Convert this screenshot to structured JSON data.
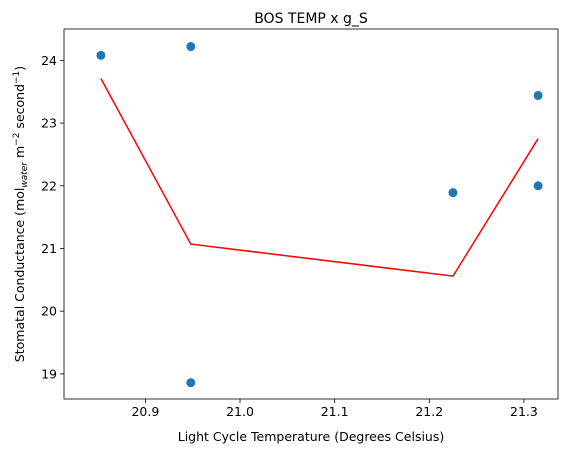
{
  "chart_data": {
    "type": "scatter",
    "title": "BOS TEMP x g_S",
    "xlabel": "Light Cycle Temperature (Degrees Celsius)",
    "ylabel": {
      "prefix": "Stomatal Conductance (mol",
      "sub": "water",
      "mid": " m",
      "sup1": "−2",
      "mid2": " second",
      "sup2": "−1",
      "suffix": ")"
    },
    "xlim": [
      20.814,
      21.336
    ],
    "ylim": [
      18.6,
      24.5
    ],
    "xticks": [
      20.9,
      21.0,
      21.1,
      21.2,
      21.3
    ],
    "xtick_labels": [
      "20.9",
      "21.0",
      "21.1",
      "21.2",
      "21.3"
    ],
    "yticks": [
      19,
      20,
      21,
      22,
      23,
      24
    ],
    "ytick_labels": [
      "19",
      "20",
      "21",
      "22",
      "23",
      "24"
    ],
    "grid": false,
    "series": [
      {
        "kind": "scatter",
        "color": "#1f77b4",
        "points": [
          {
            "x": 20.853,
            "y": 24.08
          },
          {
            "x": 20.948,
            "y": 24.22
          },
          {
            "x": 20.948,
            "y": 18.86
          },
          {
            "x": 21.225,
            "y": 21.89
          },
          {
            "x": 21.315,
            "y": 23.44
          },
          {
            "x": 21.315,
            "y": 22.0
          }
        ]
      },
      {
        "kind": "line",
        "color": "#ff0000",
        "points": [
          {
            "x": 20.853,
            "y": 23.71
          },
          {
            "x": 20.948,
            "y": 21.07
          },
          {
            "x": 21.225,
            "y": 20.56
          },
          {
            "x": 21.315,
            "y": 22.75
          }
        ]
      }
    ]
  }
}
